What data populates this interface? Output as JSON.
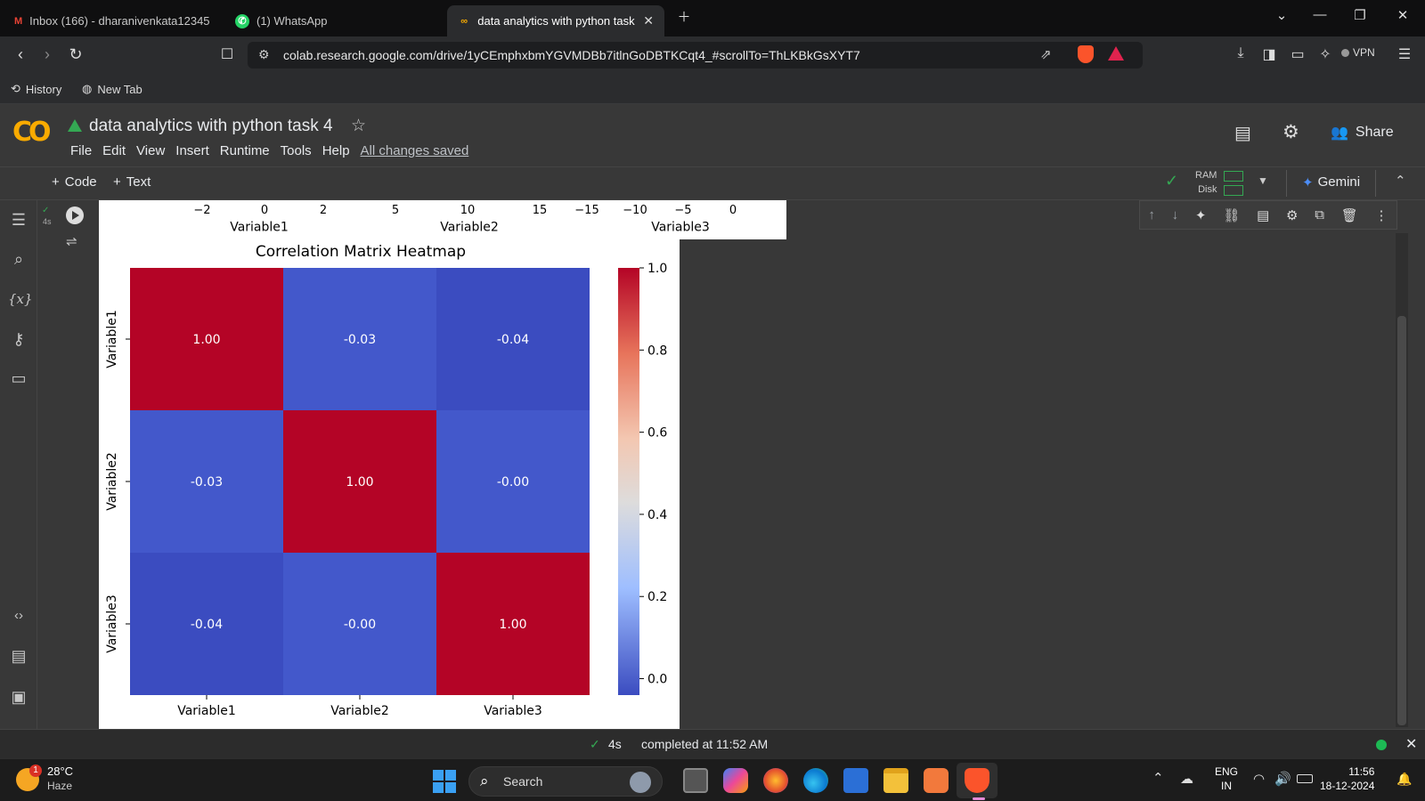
{
  "browser": {
    "tabs": [
      {
        "label": "Inbox (166) - dharanivenkata12345",
        "icon": "gmail-icon"
      },
      {
        "label": "(1) WhatsApp",
        "icon": "whatsapp-icon"
      },
      {
        "label": "data analytics with python task",
        "icon": "colab-icon"
      }
    ],
    "url": "colab.research.google.com/drive/1yCEmphxbmYGVMDBb7itlnGoDBTKCqt4_#scrollTo=ThLKBkGsXYT7",
    "bookmarks": [
      "History",
      "New Tab"
    ],
    "vpn_label": "VPN"
  },
  "colab": {
    "logo": "CO",
    "title": "data analytics with python task 4",
    "menu": [
      "File",
      "Edit",
      "View",
      "Insert",
      "Runtime",
      "Tools",
      "Help"
    ],
    "saved_status": "All changes saved",
    "share_label": "Share",
    "toolbar": {
      "code_label": "Code",
      "text_label": "Text",
      "ram_label": "RAM",
      "disk_label": "Disk",
      "gemini_label": "Gemini"
    },
    "cell": {
      "exec_time": "4s"
    }
  },
  "top_axes": {
    "ticks1": [
      "−2",
      "0",
      "2"
    ],
    "label1": "Variable1",
    "ticks2": [
      "5",
      "10",
      "15"
    ],
    "label2": "Variable2",
    "ticks3": [
      "−15",
      "−10",
      "−5",
      "0"
    ],
    "label3": "Variable3"
  },
  "chart_data": {
    "type": "heatmap",
    "title": "Correlation Matrix Heatmap",
    "rows": [
      "Variable1",
      "Variable2",
      "Variable3"
    ],
    "cols": [
      "Variable1",
      "Variable2",
      "Variable3"
    ],
    "values": [
      [
        1.0,
        -0.03,
        -0.04
      ],
      [
        -0.03,
        1.0,
        -0.0
      ],
      [
        -0.04,
        -0.0,
        1.0
      ]
    ],
    "annotations": [
      [
        "1.00",
        "-0.03",
        "-0.04"
      ],
      [
        "-0.03",
        "1.00",
        "-0.00"
      ],
      [
        "-0.04",
        "-0.00",
        "1.00"
      ]
    ],
    "colormap": "coolwarm",
    "colorbar": {
      "min": -0.04,
      "max": 1.0,
      "ticks": [
        "1.0",
        "0.8",
        "0.6",
        "0.4",
        "0.2",
        "0.0"
      ]
    },
    "colors": {
      "high": "#b40426",
      "low": "#3b4cc0",
      "neg_low": "#4358cb"
    }
  },
  "status": {
    "time": "4s",
    "text": "completed at 11:52 AM"
  },
  "taskbar": {
    "weather_temp": "28°C",
    "weather_desc": "Haze",
    "weather_badge": "1",
    "search_label": "Search",
    "lang1": "ENG",
    "lang2": "IN",
    "clock_time": "11:56",
    "clock_date": "18-12-2024"
  }
}
